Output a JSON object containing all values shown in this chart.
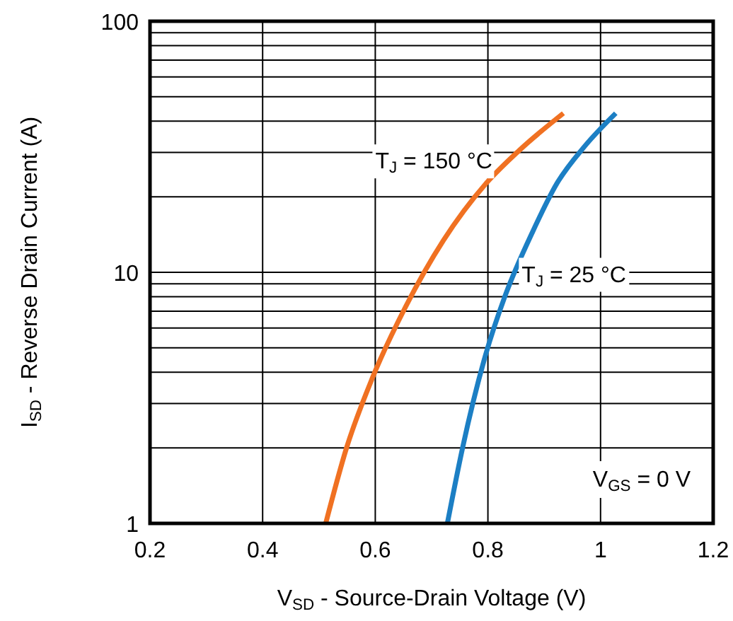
{
  "chart_data": {
    "type": "line",
    "xlabel": "V$_{SD}$ - Source-Drain Voltage (V)",
    "ylabel": "I$_{SD}$ - Reverse Drain Current (A)",
    "xlim": [
      0.2,
      1.2
    ],
    "xticks": [
      0.2,
      0.4,
      0.6,
      0.8,
      1,
      1.2
    ],
    "ylim": [
      1,
      100
    ],
    "yticks": [
      1,
      10,
      100
    ],
    "log": "y",
    "grid": true,
    "line_style": "solid",
    "series": [
      {
        "name": "T$_{J}$ = 150 °C",
        "color": "#f07122",
        "x": [
          0.512,
          0.549,
          0.595,
          0.654,
          0.721,
          0.796,
          0.855,
          0.934
        ],
        "values": [
          1,
          2.0,
          3.8,
          7.3,
          13.4,
          22.5,
          30.5,
          43
        ]
      },
      {
        "name": "T$_{J}$ = 25 °C",
        "color": "#1c7fc4",
        "x": [
          0.728,
          0.755,
          0.796,
          0.83,
          0.88,
          0.922,
          0.972,
          1.027
        ],
        "values": [
          1,
          2.0,
          4.7,
          8.0,
          14.6,
          22.5,
          31.8,
          43
        ]
      }
    ],
    "annotations": [
      "V$_{GS}$ = 0 V"
    ]
  }
}
